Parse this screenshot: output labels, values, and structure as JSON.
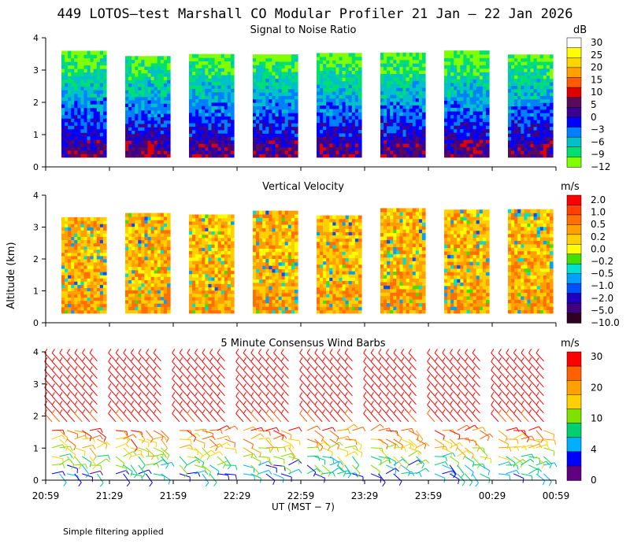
{
  "title": "449 LOTOS—test Marshall CO Modular Profiler 21 Jan — 22 Jan 2026",
  "footer_note": "Simple filtering applied",
  "ylabel": "Altitude (km)",
  "xlabel": "UT  (MST − 7)",
  "x_ticks": [
    "20:59",
    "21:29",
    "21:59",
    "22:29",
    "22:59",
    "23:29",
    "23:59",
    "00:29",
    "00:59"
  ],
  "y_ticks": [
    "0",
    "1",
    "2",
    "3",
    "4"
  ],
  "chart_data": [
    {
      "type": "heatmap",
      "id": "snr",
      "title": "Signal to Noise Ratio",
      "units": "dB",
      "ylim": [
        0,
        4
      ],
      "x_range": [
        "20:59",
        "00:59"
      ],
      "colorbar_ticks": [
        "30",
        "25",
        "20",
        "15",
        "10",
        "5",
        "0",
        "−3",
        "−6",
        "−9",
        "−12"
      ],
      "colors": [
        "#ffffff",
        "#ffff00",
        "#ffd400",
        "#ffa000",
        "#ff5a00",
        "#e00000",
        "#5a0a5a",
        "#3c0090",
        "#0000ff",
        "#0080ff",
        "#00c0c8",
        "#00e070",
        "#80ff00"
      ]
    },
    {
      "type": "heatmap",
      "id": "vv",
      "title": "Vertical Velocity",
      "units": "m/s",
      "ylim": [
        0,
        4
      ],
      "x_range": [
        "20:59",
        "00:59"
      ],
      "colorbar_ticks": [
        "2.0",
        "1.0",
        "0.5",
        "0.2",
        "0.0",
        "−0.2",
        "−0.5",
        "−1.0",
        "−2.0",
        "−5.0",
        "−10.0"
      ],
      "colors": [
        "#ff0000",
        "#ff4000",
        "#ff7000",
        "#ffa000",
        "#ffd000",
        "#ffff00",
        "#40e000",
        "#00e0d0",
        "#00a0ff",
        "#0050ff",
        "#2000c0",
        "#400080",
        "#300020"
      ]
    },
    {
      "type": "scatter",
      "id": "wind",
      "title": "5 Minute Consensus Wind Barbs",
      "units": "m/s",
      "ylim": [
        0,
        4
      ],
      "x_range": [
        "20:59",
        "00:59"
      ],
      "colorbar_ticks": [
        "30",
        "20",
        "10",
        "4",
        "0"
      ],
      "colors": [
        "#ff0000",
        "#ff6000",
        "#ffa000",
        "#ffd000",
        "#80e000",
        "#00d070",
        "#00b0ff",
        "#0000ff",
        "#600080"
      ]
    }
  ]
}
